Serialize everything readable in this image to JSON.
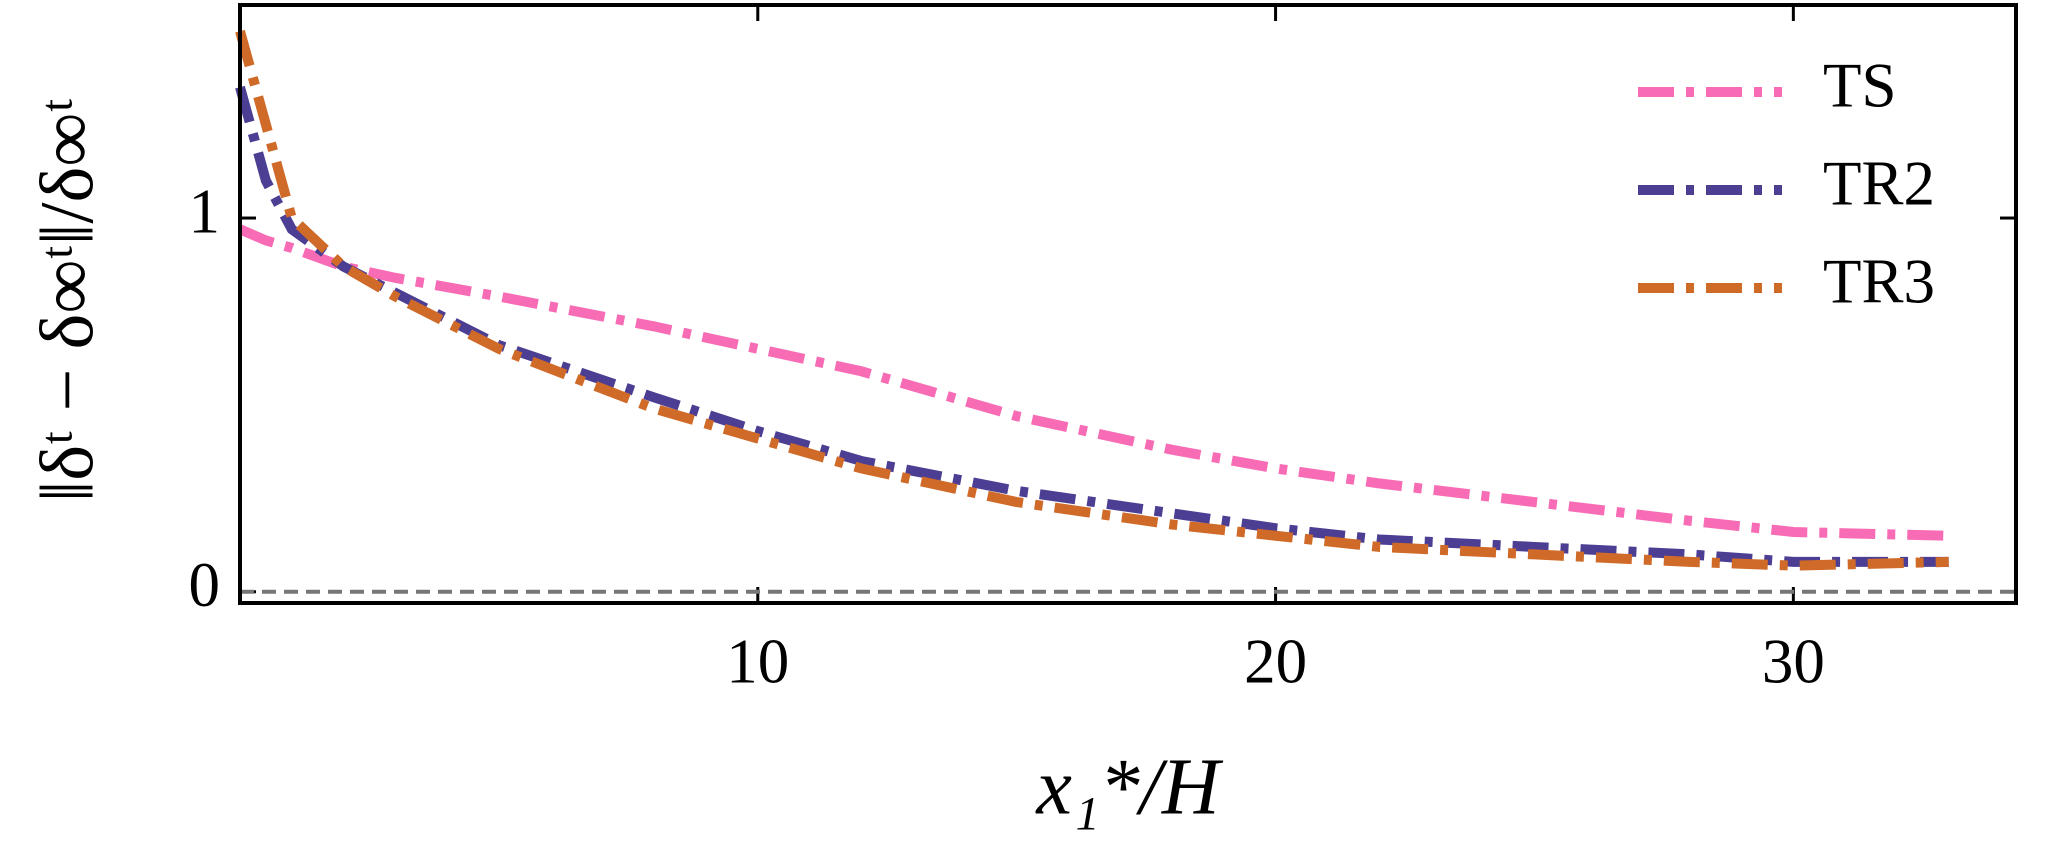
{
  "chart_data": {
    "type": "line",
    "xlabel": "x₁*/H",
    "ylabel": "‖δᵗ − δ∞ᵗ‖/δ∞ᵗ",
    "x": [
      0,
      0.5,
      1,
      2,
      3,
      5,
      8,
      10,
      12,
      15,
      18,
      20,
      22,
      25,
      28,
      30,
      33
    ],
    "series": [
      {
        "name": "TS",
        "color": "#f76cb4",
        "values": [
          0.97,
          0.94,
          0.92,
          0.87,
          0.84,
          0.79,
          0.71,
          0.65,
          0.59,
          0.47,
          0.38,
          0.33,
          0.29,
          0.24,
          0.19,
          0.16,
          0.15
        ]
      },
      {
        "name": "TR2",
        "color": "#4b3e93",
        "values": [
          1.35,
          1.1,
          0.97,
          0.87,
          0.8,
          0.66,
          0.52,
          0.43,
          0.35,
          0.27,
          0.21,
          0.17,
          0.14,
          0.12,
          0.1,
          0.08,
          0.08
        ]
      },
      {
        "name": "TR3",
        "color": "#d06a28",
        "values": [
          1.5,
          1.25,
          1.0,
          0.87,
          0.79,
          0.65,
          0.49,
          0.41,
          0.33,
          0.24,
          0.18,
          0.15,
          0.12,
          0.1,
          0.08,
          0.07,
          0.08
        ]
      }
    ],
    "reference_line": 0,
    "xlim": [
      0,
      34.3
    ],
    "xticks": [
      10,
      20,
      30
    ],
    "ylim": [
      -0.03,
      1.57
    ],
    "yticks": [
      0,
      1
    ],
    "legend": "upper right"
  }
}
